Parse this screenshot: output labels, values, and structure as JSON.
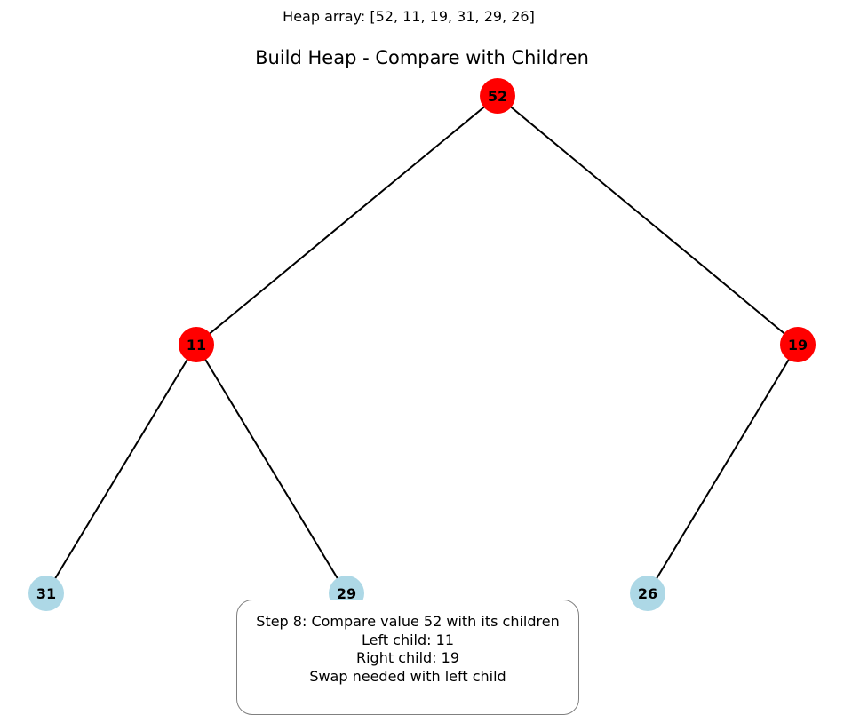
{
  "header": {
    "array_text": "Heap array: [52, 11, 19, 31, 29, 26]",
    "title": "Build Heap - Compare with Children"
  },
  "tree": {
    "nodes": [
      {
        "id": "n0",
        "label": "52",
        "state": "highlighted"
      },
      {
        "id": "n1",
        "label": "11",
        "state": "highlighted"
      },
      {
        "id": "n2",
        "label": "19",
        "state": "highlighted"
      },
      {
        "id": "n3",
        "label": "31",
        "state": "normal"
      },
      {
        "id": "n4",
        "label": "29",
        "state": "normal"
      },
      {
        "id": "n5",
        "label": "26",
        "state": "normal"
      }
    ],
    "edges": [
      [
        "n0",
        "n1"
      ],
      [
        "n0",
        "n2"
      ],
      [
        "n1",
        "n3"
      ],
      [
        "n1",
        "n4"
      ],
      [
        "n2",
        "n5"
      ]
    ]
  },
  "colors": {
    "highlighted": "#ff0000",
    "normal": "#add8e6",
    "edge": "#000000",
    "box_border": "#808080"
  },
  "info": {
    "line1": "Step 8: Compare value 52 with its children",
    "line2": "Left child: 11",
    "line3": "Right child: 19",
    "line4": "Swap needed with left child"
  }
}
